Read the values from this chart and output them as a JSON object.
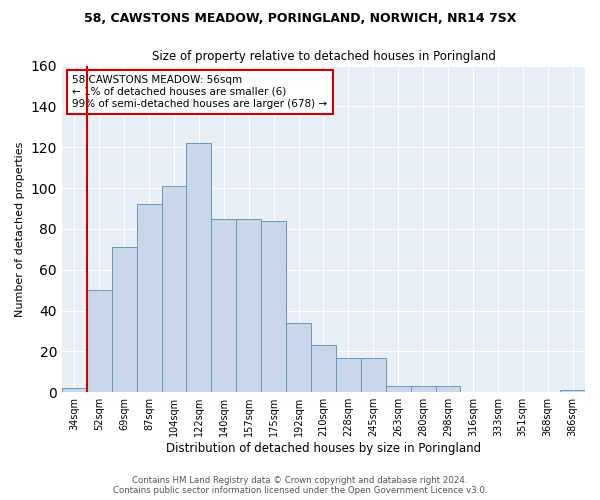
{
  "title1": "58, CAWSTONS MEADOW, PORINGLAND, NORWICH, NR14 7SX",
  "title2": "Size of property relative to detached houses in Poringland",
  "xlabel": "Distribution of detached houses by size in Poringland",
  "ylabel": "Number of detached properties",
  "bar_labels": [
    "34sqm",
    "52sqm",
    "69sqm",
    "87sqm",
    "104sqm",
    "122sqm",
    "140sqm",
    "157sqm",
    "175sqm",
    "192sqm",
    "210sqm",
    "228sqm",
    "245sqm",
    "263sqm",
    "280sqm",
    "298sqm",
    "316sqm",
    "333sqm",
    "351sqm",
    "368sqm",
    "386sqm"
  ],
  "bar_values": [
    2,
    50,
    71,
    92,
    101,
    122,
    85,
    85,
    84,
    34,
    23,
    17,
    17,
    3,
    3,
    3,
    0,
    0,
    0,
    0,
    1
  ],
  "bar_color": "#c8d8ea",
  "bar_edgecolor": "#6699bb",
  "ylim": [
    0,
    160
  ],
  "yticks": [
    0,
    20,
    40,
    60,
    80,
    100,
    120,
    140,
    160
  ],
  "vline_color": "#cc0000",
  "annotation_lines": [
    "58 CAWSTONS MEADOW: 56sqm",
    "← 1% of detached houses are smaller (6)",
    "99% of semi-detached houses are larger (678) →"
  ],
  "annotation_box_color": "#cc0000",
  "footer1": "Contains HM Land Registry data © Crown copyright and database right 2024.",
  "footer2": "Contains public sector information licensed under the Open Government Licence v3.0.",
  "plot_bg_color": "#e8eef5"
}
